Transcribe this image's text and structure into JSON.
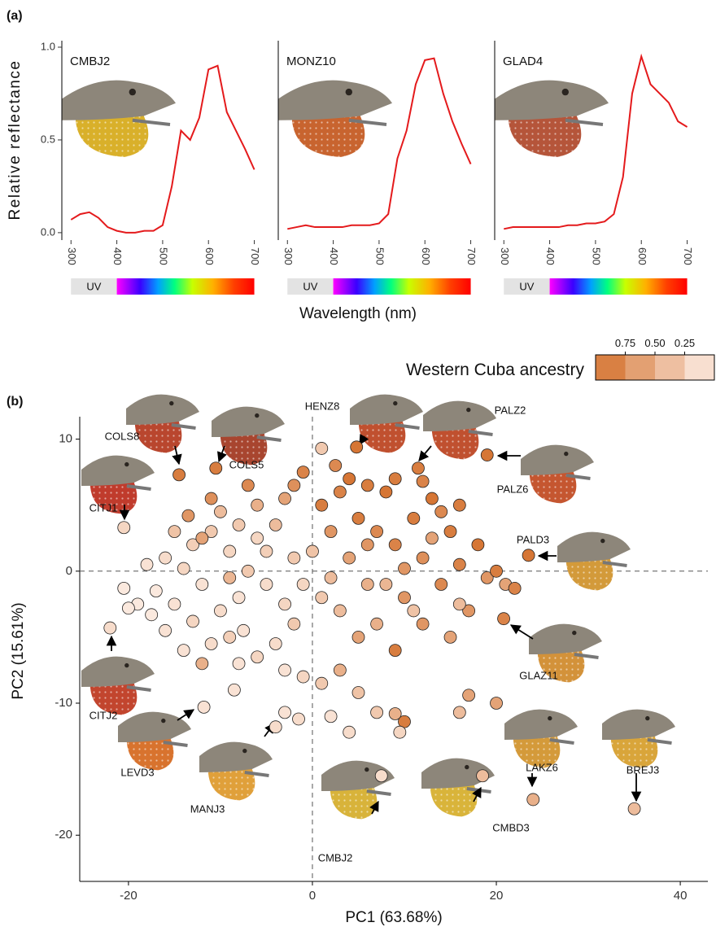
{
  "chart_data": [
    {
      "type": "line",
      "panel": "(a)",
      "title": "CMBJ2",
      "ylabel": "Relative reflectance",
      "band_label": "UV",
      "color": "#e41a1c",
      "x": [
        300,
        320,
        340,
        360,
        380,
        400,
        420,
        440,
        460,
        480,
        500,
        520,
        540,
        560,
        580,
        600,
        620,
        640,
        660,
        680,
        700
      ],
      "values": [
        0.07,
        0.1,
        0.11,
        0.08,
        0.03,
        0.01,
        0.0,
        0.0,
        0.01,
        0.01,
        0.04,
        0.25,
        0.55,
        0.5,
        0.62,
        0.88,
        0.9,
        0.65,
        0.55,
        0.45,
        0.34
      ],
      "xlim": [
        280,
        715
      ],
      "xticks": [
        300,
        400,
        500,
        600,
        700
      ],
      "ylim": [
        -0.04,
        1.035
      ],
      "yticks": [
        {
          "value": 0,
          "label": "0.0"
        },
        {
          "value": 0.5,
          "label": "0.5"
        },
        {
          "value": 1,
          "label": "1.0"
        }
      ]
    },
    {
      "type": "line",
      "title": "MONZ10",
      "xlabel": "Wavelength (nm)",
      "band_label": "UV",
      "color": "#e41a1c",
      "x": [
        300,
        320,
        340,
        360,
        380,
        400,
        420,
        440,
        460,
        480,
        500,
        520,
        540,
        560,
        580,
        600,
        620,
        640,
        660,
        680,
        700
      ],
      "values": [
        0.02,
        0.03,
        0.04,
        0.03,
        0.03,
        0.03,
        0.03,
        0.04,
        0.04,
        0.04,
        0.05,
        0.1,
        0.4,
        0.55,
        0.8,
        0.93,
        0.94,
        0.75,
        0.6,
        0.48,
        0.37
      ],
      "xlim": [
        280,
        715
      ],
      "xticks": [
        300,
        400,
        500,
        600,
        700
      ],
      "ylim": [
        -0.04,
        1.035
      ]
    },
    {
      "type": "line",
      "title": "GLAD4",
      "band_label": "UV",
      "color": "#e41a1c",
      "x": [
        300,
        320,
        340,
        360,
        380,
        400,
        420,
        440,
        460,
        480,
        500,
        520,
        540,
        560,
        580,
        600,
        620,
        640,
        660,
        680,
        700
      ],
      "values": [
        0.02,
        0.03,
        0.03,
        0.03,
        0.03,
        0.03,
        0.03,
        0.04,
        0.04,
        0.05,
        0.05,
        0.06,
        0.1,
        0.3,
        0.75,
        0.95,
        0.8,
        0.75,
        0.7,
        0.6,
        0.57
      ],
      "xlim": [
        280,
        715
      ],
      "xticks": [
        300,
        400,
        500,
        600,
        700
      ],
      "ylim": [
        -0.04,
        1.035
      ]
    },
    {
      "type": "scatter",
      "panel": "(b)",
      "xlabel": "PC1 (63.68%)",
      "ylabel": "PC2 (15.61%)",
      "xlim": [
        -25.3,
        43
      ],
      "ylim": [
        -23.5,
        11.7
      ],
      "xticks": [
        -20,
        0,
        20,
        40
      ],
      "yticks": [
        -20,
        -10,
        0,
        10
      ],
      "vline": 0,
      "hline": 0,
      "colors": [
        "#fdefe7",
        "#d4702c"
      ],
      "legend_title": "Western Cuba ancestry",
      "legend_lim": [
        1,
        0
      ],
      "legend_ticks": [
        0.75,
        {
          "value": 0.5,
          "label": "0.50"
        },
        0.25
      ],
      "points": {
        "x": [
          -18,
          -17,
          -16,
          -15,
          -14,
          -13,
          -12,
          -11,
          -10,
          -9,
          -8,
          -7,
          -6,
          -5,
          -4,
          -3,
          -2,
          -17.5,
          -16,
          -14,
          -13,
          -11,
          -9,
          -7.5,
          -6,
          -4,
          -3,
          -12,
          -19,
          -15,
          -10,
          -8,
          -6,
          -3,
          -12,
          -9,
          -5,
          -1,
          -2,
          -8,
          -20.5,
          -20,
          -13.5,
          -11,
          -7,
          1,
          2,
          3,
          4,
          5,
          6,
          7,
          8,
          9,
          10,
          11,
          12,
          13,
          14,
          15,
          16,
          17,
          3,
          5,
          7,
          9,
          12,
          15,
          1,
          0,
          2,
          4,
          6,
          9,
          12,
          14,
          16,
          18,
          19,
          21,
          22,
          20,
          13,
          10,
          8,
          6,
          11,
          16,
          1,
          2.5,
          -1,
          -2,
          -8.5,
          -3,
          -1.5,
          2,
          4,
          7,
          9,
          10,
          9.5,
          17,
          16,
          20,
          -1,
          1,
          3,
          5
        ],
        "y": [
          0.5,
          -1.5,
          1,
          -2.5,
          0.2,
          2,
          -1,
          3,
          -3,
          1.5,
          -2,
          0,
          2.5,
          -1,
          3.5,
          -2.5,
          1,
          -3.3,
          -4.5,
          -6,
          -3.8,
          -5.5,
          -5,
          -4.5,
          -6.5,
          -5.5,
          -7.5,
          -7,
          -2.5,
          3,
          4.5,
          3.5,
          5,
          5.5,
          2.5,
          -0.5,
          1.5,
          -1,
          -4,
          -7,
          -1.3,
          -2.8,
          4.2,
          5.5,
          6.5,
          5,
          3,
          6,
          1,
          4,
          -1,
          3,
          6,
          2,
          -2,
          4,
          1,
          5.5,
          -1,
          3,
          0.5,
          -3,
          -3,
          -5,
          -4,
          -6,
          -4,
          -5,
          -2,
          1.5,
          -0.5,
          7,
          6.5,
          7,
          6.8,
          4.5,
          5,
          2,
          -0.5,
          -1,
          -1.3,
          0,
          2.5,
          0.2,
          -1,
          2,
          -3,
          -2.5,
          9.3,
          8,
          7.5,
          6.5,
          -9,
          -10.7,
          -11.2,
          -11,
          -12.2,
          -10.7,
          -10.8,
          -11.4,
          -12.2,
          -9.4,
          -10.7,
          -10,
          -8,
          -8.5,
          -7.5,
          -9.2
        ],
        "ancestry": [
          0.1,
          0.05,
          0.15,
          0.1,
          0.2,
          0.25,
          0.1,
          0.3,
          0.15,
          0.2,
          0.1,
          0.3,
          0.2,
          0.15,
          0.4,
          0.2,
          0.3,
          0.05,
          0.1,
          0.1,
          0.2,
          0.15,
          0.25,
          0.1,
          0.2,
          0.15,
          0.1,
          0.5,
          0.05,
          0.35,
          0.4,
          0.3,
          0.5,
          0.6,
          0.6,
          0.45,
          0.25,
          0.2,
          0.3,
          0.1,
          0.05,
          0.05,
          0.7,
          0.75,
          0.8,
          0.9,
          0.7,
          0.85,
          0.6,
          0.9,
          0.5,
          0.8,
          0.95,
          0.85,
          0.7,
          0.9,
          0.75,
          0.95,
          0.8,
          0.9,
          0.85,
          0.7,
          0.4,
          0.6,
          0.5,
          0.9,
          0.7,
          0.6,
          0.3,
          0.35,
          0.4,
          0.95,
          0.9,
          0.9,
          0.85,
          0.8,
          0.9,
          0.95,
          0.7,
          0.6,
          0.85,
          0.9,
          0.6,
          0.7,
          0.45,
          0.7,
          0.35,
          0.4,
          0.3,
          0.8,
          0.85,
          0.75,
          0.1,
          0.1,
          0.15,
          0.1,
          0.15,
          0.3,
          0.5,
          0.9,
          0.2,
          0.6,
          0.4,
          0.6,
          0.2,
          0.3,
          0.5,
          0.35
        ]
      },
      "labeled_points": {
        "labels": [
          "COLS8",
          "COLS5",
          "HENZ8",
          "PALZ2",
          "PALZ6",
          "CITJ1",
          "PALD3",
          "GLAZ11",
          "CITJ2",
          "LEVD3",
          "MANJ3",
          "CMBJ2",
          "CMBD3",
          "LAKZ6",
          "BREJ3"
        ],
        "x": [
          -14.5,
          -10.5,
          4.8,
          11.5,
          19,
          -20.5,
          23.5,
          20.8,
          -22,
          -11.8,
          -4,
          7.5,
          18.5,
          24,
          35
        ],
        "y": [
          7.3,
          7.8,
          9.4,
          7.8,
          8.8,
          3.3,
          1.2,
          -3.6,
          -4.3,
          -10.3,
          -11.8,
          -15.5,
          -15.5,
          -17.3,
          -18
        ],
        "ancestry": [
          0.9,
          0.9,
          0.95,
          0.9,
          0.95,
          0.2,
          0.95,
          0.85,
          0.15,
          0.1,
          0.15,
          0.15,
          0.4,
          0.5,
          0.4
        ]
      }
    }
  ]
}
